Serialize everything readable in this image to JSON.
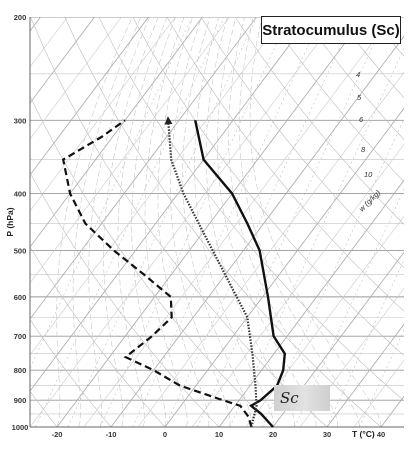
{
  "title": "Stratocumulus (Sc)",
  "cloud_label": "Sc",
  "chart_data": {
    "type": "line",
    "diagram": "skew-T log-P",
    "title": "Stratocumulus (Sc)",
    "xlabel": "T (°C)",
    "ylabel": "P (hPa)",
    "x_ticks": [
      -20,
      -10,
      0,
      10,
      20,
      30,
      40
    ],
    "y_ticks": [
      1000,
      900,
      800,
      700,
      600,
      500,
      400,
      300,
      200
    ],
    "ylim": [
      1000,
      200
    ],
    "log_y": true,
    "mixing_ratio_label": "w (g/kg)",
    "mixing_ratio_ticks": [
      "4",
      "5",
      "6",
      "8",
      "10"
    ],
    "series": [
      {
        "style": "solid",
        "points": [
          [
            1000,
            20
          ],
          [
            950,
            16
          ],
          [
            920,
            13
          ],
          [
            900,
            14
          ],
          [
            850,
            15
          ],
          [
            800,
            14
          ],
          [
            750,
            12
          ],
          [
            700,
            7.5
          ],
          [
            600,
            1
          ],
          [
            500,
            -7
          ],
          [
            450,
            -13
          ],
          [
            400,
            -20
          ],
          [
            350,
            -30
          ],
          [
            300,
            -37
          ]
        ]
      },
      {
        "style": "dashed",
        "points": [
          [
            1000,
            16
          ],
          [
            960,
            14
          ],
          [
            920,
            11
          ],
          [
            900,
            7
          ],
          [
            850,
            -3
          ],
          [
            800,
            -10
          ],
          [
            760,
            -17
          ],
          [
            700,
            -15
          ],
          [
            650,
            -14
          ],
          [
            600,
            -17
          ],
          [
            550,
            -25
          ],
          [
            500,
            -34
          ],
          [
            450,
            -43
          ],
          [
            400,
            -50
          ],
          [
            350,
            -56
          ],
          [
            320,
            -52
          ],
          [
            300,
            -50
          ]
        ]
      },
      {
        "style": "dotted",
        "arrow": true,
        "points": [
          [
            1000,
            16
          ],
          [
            920,
            14
          ],
          [
            850,
            11
          ],
          [
            750,
            6
          ],
          [
            650,
            0
          ],
          [
            550,
            -10
          ],
          [
            450,
            -22
          ],
          [
            400,
            -29
          ],
          [
            350,
            -36
          ],
          [
            300,
            -42
          ]
        ]
      }
    ],
    "annotations": [
      "Sc"
    ],
    "grid": true
  }
}
